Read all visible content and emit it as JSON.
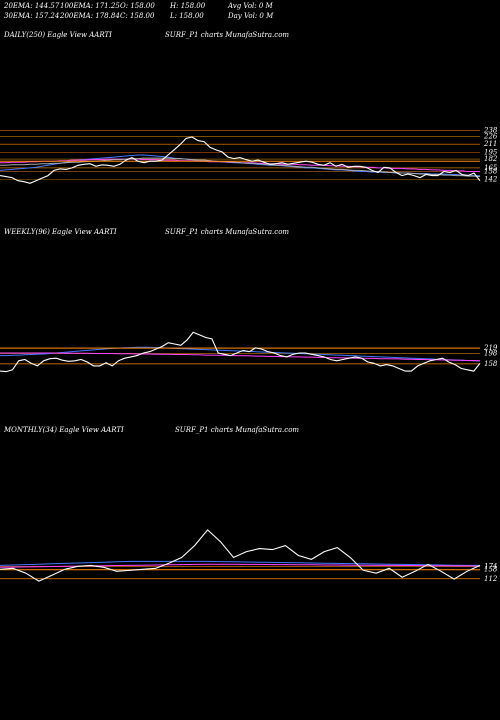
{
  "header": {
    "row1": [
      {
        "label": "20EMA:",
        "value": "144.57"
      },
      {
        "label": "100EMA:",
        "value": "171.25"
      },
      {
        "label": "O:",
        "value": "158.00"
      },
      {
        "label": "H:",
        "value": "158.00"
      },
      {
        "label": "Avg Vol:",
        "value": "0  M"
      }
    ],
    "row2": [
      {
        "label": "30EMA:",
        "value": "157.24"
      },
      {
        "label": "200EMA:",
        "value": "178.84"
      },
      {
        "label": "C:",
        "value": "158.00"
      },
      {
        "label": "L:",
        "value": "158.00"
      },
      {
        "label": "Day Vol:",
        "value": "0  M"
      }
    ]
  },
  "chart_data": [
    {
      "type": "line",
      "title_left": "DAILY(250) Eagle  View  AARTI",
      "title_right": "SURF_P1 charts MunafaSutra.com",
      "y_ticks": [
        "238",
        "226",
        "211",
        "195",
        "182",
        "165",
        "158",
        "142"
      ],
      "ylim": [
        120,
        260
      ],
      "series": [
        {
          "color": "#ffffff",
          "values": [
            150,
            148,
            146,
            140,
            138,
            135,
            140,
            145,
            150,
            160,
            163,
            162,
            165,
            170,
            172,
            173,
            168,
            171,
            170,
            168,
            172,
            180,
            185,
            178,
            175,
            178,
            178,
            180,
            190,
            200,
            210,
            222,
            225,
            218,
            216,
            205,
            200,
            196,
            186,
            183,
            185,
            181,
            178,
            180,
            176,
            172,
            173,
            175,
            172,
            174,
            176,
            178,
            176,
            172,
            170,
            175,
            168,
            172,
            166,
            168,
            168,
            166,
            160,
            156,
            166,
            165,
            156,
            150,
            153,
            150,
            146,
            152,
            150,
            150,
            158,
            156,
            160,
            152,
            150,
            155,
            140
          ]
        },
        {
          "color": "#4477ff",
          "values": [
            160,
            161,
            162,
            163,
            164,
            165,
            166,
            168,
            170,
            172,
            174,
            176,
            178,
            180,
            181,
            182,
            183,
            184,
            185,
            186,
            187,
            188,
            189,
            190,
            190,
            189,
            188,
            187,
            186,
            184,
            183,
            182,
            181,
            180,
            180,
            179,
            178,
            177,
            176,
            175,
            175,
            174,
            173,
            172,
            171,
            170,
            170,
            169,
            168,
            167,
            166,
            165,
            165,
            164,
            163,
            162,
            161,
            161,
            160,
            159,
            158,
            158,
            157,
            157,
            156,
            156,
            155,
            155,
            155,
            154,
            154,
            154,
            153,
            153,
            153,
            152,
            152,
            151,
            151,
            150,
            150
          ]
        },
        {
          "color": "#ff44ff",
          "values": [
            175,
            175,
            176,
            176,
            176,
            177,
            177,
            178,
            178,
            178,
            179,
            179,
            180,
            180,
            180,
            181,
            181,
            181,
            182,
            182,
            182,
            182,
            182,
            182,
            181,
            181,
            181,
            180,
            180,
            180,
            179,
            179,
            179,
            178,
            178,
            177,
            177,
            177,
            176,
            176,
            175,
            175,
            175,
            174,
            174,
            173,
            173,
            172,
            172,
            172,
            171,
            171,
            170,
            170,
            170,
            169,
            169,
            168,
            168,
            167,
            167,
            166,
            166,
            165,
            165,
            164,
            164,
            164,
            163,
            163,
            162,
            162,
            161,
            161,
            160,
            160,
            159,
            159,
            158,
            158,
            158
          ]
        },
        {
          "color": "#aaaaaa",
          "values": [
            170,
            170,
            171,
            171,
            171,
            172,
            172,
            173,
            173,
            174,
            174,
            175,
            176,
            176,
            177,
            178,
            178,
            179,
            180,
            181,
            181,
            182,
            183,
            183,
            184,
            184,
            184,
            184,
            184,
            183,
            183,
            182,
            181,
            180,
            180,
            179,
            178,
            177,
            177,
            176,
            175,
            174,
            174,
            173,
            172,
            171,
            170,
            170,
            169,
            168,
            167,
            166,
            166,
            165,
            164,
            163,
            162,
            162,
            161,
            160,
            160,
            159,
            158,
            158,
            157,
            156,
            156,
            155,
            155,
            154,
            153,
            153,
            152,
            152,
            151,
            151,
            150,
            150,
            149,
            149,
            148
          ]
        },
        {
          "color": "#ff8800",
          "values": [
            178,
            178,
            178,
            178,
            178,
            178,
            178,
            178,
            178,
            178,
            178,
            178,
            178,
            178,
            178,
            178,
            178,
            178,
            178,
            178,
            178,
            178,
            178,
            178,
            178,
            178,
            178,
            178,
            178,
            178,
            178,
            178,
            178,
            178,
            178,
            178,
            178,
            178,
            178,
            178,
            178,
            178,
            178,
            178,
            178,
            178,
            178,
            178,
            178,
            178,
            178,
            178,
            178,
            178,
            178,
            178,
            178,
            178,
            178,
            178,
            178,
            178,
            178,
            178,
            178,
            178,
            178,
            178,
            178,
            178,
            178,
            178,
            178,
            178,
            178,
            178,
            178,
            178,
            178,
            178,
            178
          ]
        }
      ]
    },
    {
      "type": "line",
      "title_left": "WEEKLY(96) Eagle  View  AARTI",
      "title_right": "SURF_P1 charts MunafaSutra.com",
      "y_ticks": [
        "219",
        "198",
        "158"
      ],
      "ylim": [
        80,
        320
      ],
      "series": [
        {
          "color": "#ffffff",
          "values": [
            130,
            128,
            135,
            170,
            175,
            160,
            150,
            170,
            178,
            180,
            172,
            168,
            170,
            175,
            165,
            150,
            150,
            162,
            150,
            170,
            180,
            185,
            190,
            200,
            205,
            215,
            225,
            240,
            235,
            230,
            250,
            280,
            270,
            260,
            255,
            200,
            195,
            190,
            200,
            210,
            205,
            220,
            215,
            205,
            200,
            190,
            185,
            195,
            200,
            200,
            195,
            190,
            185,
            175,
            170,
            175,
            180,
            185,
            180,
            165,
            160,
            150,
            155,
            150,
            140,
            130,
            130,
            150,
            160,
            170,
            175,
            180,
            165,
            155,
            140,
            135,
            130,
            160
          ]
        },
        {
          "color": "#4477ff",
          "values": [
            190,
            190,
            191,
            192,
            193,
            194,
            195,
            196,
            198,
            200,
            202,
            204,
            206,
            208,
            210,
            212,
            214,
            216,
            218,
            219,
            220,
            221,
            222,
            222,
            222,
            221,
            220,
            219,
            218,
            217,
            216,
            215,
            214,
            213,
            212,
            211,
            210,
            209,
            208,
            207,
            206,
            205,
            204,
            203,
            202,
            201,
            200,
            199,
            198,
            197,
            196,
            195,
            194,
            193,
            192,
            191,
            190,
            189,
            188,
            187,
            186,
            185,
            184,
            183,
            182,
            181,
            180,
            179,
            178,
            177,
            176,
            175,
            174,
            173,
            172,
            171,
            170,
            169
          ]
        },
        {
          "color": "#ff44ff",
          "values": [
            200,
            200,
            200,
            200,
            200,
            200,
            200,
            200,
            200,
            200,
            199,
            199,
            199,
            199,
            199,
            198,
            198,
            198,
            198,
            197,
            197,
            197,
            196,
            196,
            196,
            195,
            195,
            195,
            194,
            194,
            194,
            193,
            193,
            192,
            192,
            191,
            191,
            190,
            190,
            189,
            189,
            188,
            188,
            187,
            187,
            186,
            186,
            185,
            185,
            184,
            184,
            183,
            183,
            182,
            182,
            181,
            181,
            180,
            180,
            179,
            179,
            178,
            178,
            177,
            177,
            176,
            176,
            175,
            175,
            174,
            174,
            173,
            173,
            172,
            172,
            171,
            171,
            170
          ]
        },
        {
          "color": "#ff8800",
          "values": [
            219,
            219,
            219,
            219,
            219,
            219,
            219,
            219,
            219,
            219,
            219,
            219,
            219,
            219,
            219,
            219,
            219,
            219,
            219,
            219,
            219,
            219,
            219,
            219,
            219,
            219,
            219,
            219,
            219,
            219,
            219,
            219,
            219,
            219,
            219,
            219,
            219,
            219,
            219,
            219,
            219,
            219,
            219,
            219,
            219,
            219,
            219,
            219,
            219,
            219,
            219,
            219,
            219,
            219,
            219,
            219,
            219,
            219,
            219,
            219,
            219,
            219,
            219,
            219,
            219,
            219,
            219,
            219,
            219,
            219,
            219,
            219,
            219,
            219,
            219,
            219,
            219,
            219
          ]
        }
      ]
    },
    {
      "type": "line",
      "title_left": "MONTHLY(34) Eagle  View  AARTI",
      "title_right": "SURF_P1 charts MunafaSutra.com",
      "y_ticks": [
        "174",
        "158",
        "112"
      ],
      "ylim": [
        60,
        400
      ],
      "series": [
        {
          "color": "#ffffff",
          "values": [
            160,
            165,
            140,
            100,
            130,
            160,
            175,
            180,
            170,
            150,
            155,
            160,
            165,
            190,
            220,
            280,
            360,
            300,
            220,
            250,
            265,
            260,
            280,
            230,
            210,
            250,
            270,
            220,
            155,
            140,
            165,
            120,
            150,
            185,
            150,
            110,
            150,
            180
          ]
        },
        {
          "color": "#4477ff",
          "values": [
            180,
            182,
            184,
            186,
            188,
            190,
            192,
            194,
            196,
            198,
            200,
            200,
            200,
            200,
            200,
            200,
            200,
            199,
            198,
            197,
            196,
            195,
            194,
            193,
            192,
            191,
            190,
            189,
            188,
            187,
            186,
            185,
            184,
            183,
            182,
            181,
            180,
            180
          ]
        },
        {
          "color": "#ff44ff",
          "values": [
            170,
            171,
            172,
            173,
            174,
            175,
            176,
            177,
            178,
            179,
            180,
            181,
            182,
            183,
            184,
            185,
            186,
            186,
            186,
            185,
            185,
            184,
            184,
            183,
            183,
            182,
            182,
            181,
            181,
            180,
            180,
            179,
            179,
            178,
            178,
            177,
            177,
            176
          ]
        },
        {
          "color": "#ff8800",
          "values": [
            158,
            158,
            158,
            158,
            158,
            158,
            158,
            158,
            158,
            158,
            158,
            158,
            158,
            158,
            158,
            158,
            158,
            158,
            158,
            158,
            158,
            158,
            158,
            158,
            158,
            158,
            158,
            158,
            158,
            158,
            158,
            158,
            158,
            158,
            158,
            158,
            158,
            158
          ]
        }
      ]
    }
  ]
}
